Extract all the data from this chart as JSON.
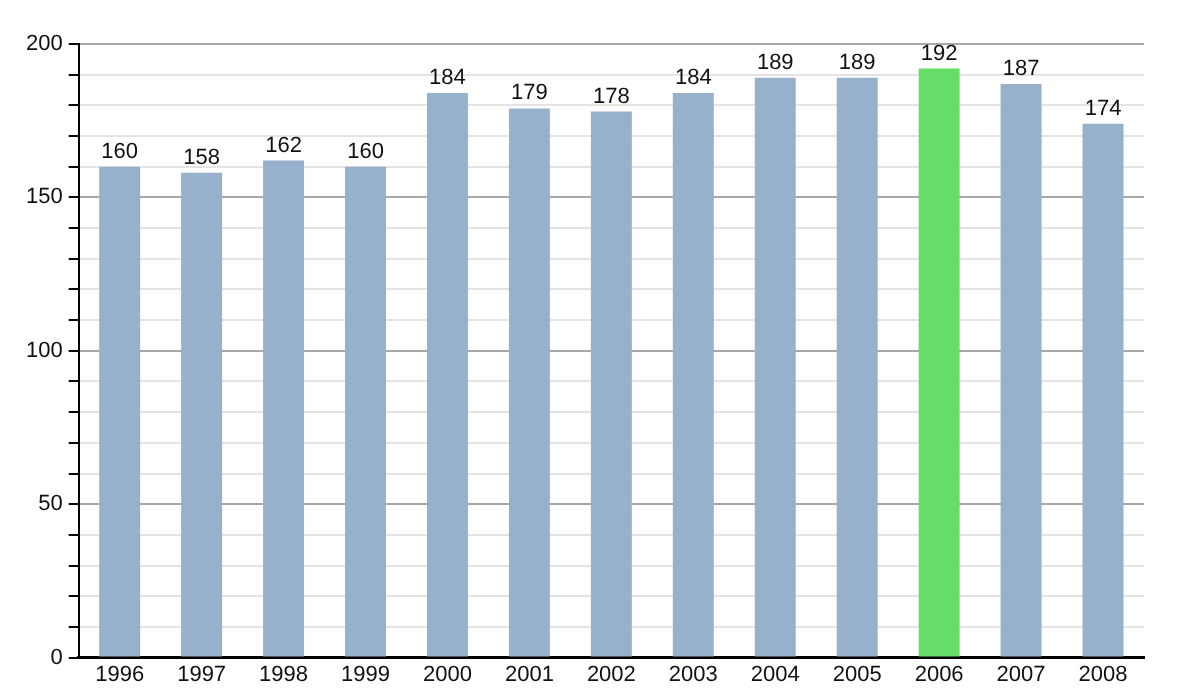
{
  "chart_data": {
    "type": "bar",
    "categories": [
      "1996",
      "1997",
      "1998",
      "1999",
      "2000",
      "2001",
      "2002",
      "2003",
      "2004",
      "2005",
      "2006",
      "2007",
      "2008"
    ],
    "values": [
      160,
      158,
      162,
      160,
      184,
      179,
      178,
      184,
      189,
      189,
      192,
      187,
      174
    ],
    "colors": [
      "#97b0cb",
      "#97b0cb",
      "#97b0cb",
      "#97b0cb",
      "#97b0cb",
      "#97b0cb",
      "#97b0cb",
      "#97b0cb",
      "#97b0cb",
      "#97b0cb",
      "#66dd66",
      "#97b0cb",
      "#97b0cb"
    ],
    "ylim": [
      0,
      200
    ],
    "yticks": [
      0,
      {
        "value": 10,
        "label": null
      },
      {
        "value": 20,
        "label": null
      },
      {
        "value": 30,
        "label": null
      },
      {
        "value": 40,
        "label": null
      },
      50,
      {
        "value": 60,
        "label": null
      },
      {
        "value": 70,
        "label": null
      },
      {
        "value": 80,
        "label": null
      },
      {
        "value": 90,
        "label": null
      },
      100,
      {
        "value": 110,
        "label": null
      },
      {
        "value": 120,
        "label": null
      },
      {
        "value": 130,
        "label": null
      },
      {
        "value": 140,
        "label": null
      },
      150,
      {
        "value": 160,
        "label": null
      },
      {
        "value": 170,
        "label": null
      },
      {
        "value": 180,
        "label": null
      },
      {
        "value": 190,
        "label": null
      },
      200
    ],
    "grid": "y",
    "data_labels": true
  }
}
